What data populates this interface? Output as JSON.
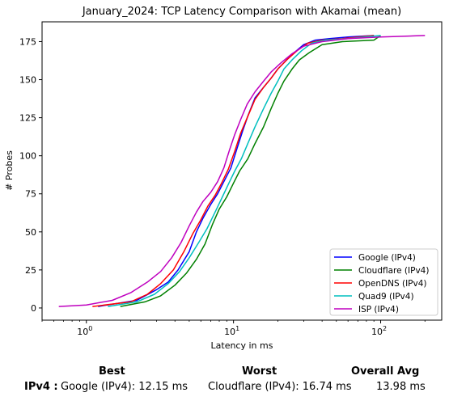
{
  "chart_data": {
    "type": "line",
    "title": "January_2024: TCP Latency Comparison with Akamai (mean)",
    "xlabel": "Latency in ms",
    "ylabel": "# Probes",
    "xscale": "log",
    "xlim": [
      0.5,
      260
    ],
    "ylim": [
      -8,
      188
    ],
    "xticks": [
      1,
      10,
      100
    ],
    "xtick_labels": [
      "10",
      "10",
      "10"
    ],
    "xtick_exponents": [
      "0",
      "1",
      "2"
    ],
    "yticks": [
      0,
      25,
      50,
      75,
      100,
      125,
      150,
      175
    ],
    "yticks_labels": [
      "0",
      "25",
      "50",
      "75",
      "100",
      "125",
      "150",
      "175"
    ],
    "grid": false,
    "legend_position": "bottom-right",
    "series": [
      {
        "name": "Google (IPv4)",
        "color": "#0000ff",
        "x": [
          1.2,
          2.2,
          3.0,
          3.6,
          4.2,
          5.0,
          5.6,
          6.2,
          7.0,
          7.8,
          8.6,
          9.6,
          10.5,
          11.5,
          12.5,
          14.0,
          16.0,
          18.0,
          20.0,
          23.0,
          26.0,
          30.0,
          36.0,
          45.0,
          60.0,
          90.0
        ],
        "y": [
          1,
          5,
          12,
          17,
          25,
          37,
          50,
          59,
          68,
          75,
          83,
          92,
          104,
          116,
          126,
          138,
          145,
          151,
          157,
          163,
          168,
          173,
          176,
          177,
          178,
          179
        ]
      },
      {
        "name": "Cloudflare (IPv4)",
        "color": "#008000",
        "x": [
          1.7,
          2.5,
          3.2,
          4.0,
          4.8,
          5.6,
          6.4,
          7.2,
          8.0,
          9.0,
          10.0,
          11.0,
          12.5,
          14.0,
          16.0,
          18.0,
          20.0,
          22.0,
          25.0,
          28.0,
          33.0,
          40.0,
          55.0,
          90.0,
          100.0
        ],
        "y": [
          1,
          4,
          8,
          15,
          23,
          32,
          42,
          55,
          65,
          73,
          82,
          90,
          98,
          108,
          119,
          131,
          141,
          149,
          157,
          163,
          168,
          173,
          175,
          176,
          179
        ]
      },
      {
        "name": "OpenDNS (IPv4)",
        "color": "#ff0000",
        "x": [
          1.1,
          2.0,
          2.6,
          3.2,
          3.9,
          4.6,
          5.3,
          6.0,
          6.7,
          7.5,
          8.3,
          9.2,
          10.2,
          11.2,
          12.4,
          14.0,
          16.0,
          18.0,
          20.0,
          23.0,
          27.0,
          32.0,
          40.0,
          55.0,
          90.0
        ],
        "y": [
          1,
          4,
          9,
          16,
          25,
          37,
          49,
          58,
          67,
          74,
          82,
          91,
          103,
          115,
          125,
          137,
          145,
          151,
          157,
          163,
          169,
          174,
          176,
          177,
          179
        ]
      },
      {
        "name": "Quad9 (IPv4)",
        "color": "#00bfbf",
        "x": [
          1.4,
          2.2,
          2.9,
          3.6,
          4.3,
          5.0,
          5.8,
          6.6,
          7.5,
          8.4,
          9.3,
          10.2,
          11.3,
          12.5,
          14.0,
          16.0,
          18.0,
          20.0,
          22.0,
          25.0,
          29.0,
          34.0,
          42.0,
          60.0,
          100.0
        ],
        "y": [
          1,
          4,
          9,
          16,
          24,
          33,
          43,
          52,
          63,
          73,
          82,
          90,
          98,
          108,
          119,
          131,
          141,
          149,
          157,
          163,
          169,
          174,
          176,
          177,
          179
        ]
      },
      {
        "name": "ISP (IPv4)",
        "color": "#bf00bf",
        "x": [
          0.65,
          1.0,
          1.5,
          2.0,
          2.6,
          3.2,
          3.8,
          4.4,
          5.0,
          5.6,
          6.2,
          7.0,
          7.8,
          8.6,
          9.4,
          10.2,
          11.2,
          12.4,
          14.0,
          16.0,
          18.0,
          21.0,
          25.0,
          30.0,
          40.0,
          60.0,
          100.0,
          200.0
        ],
        "y": [
          1,
          2,
          5,
          10,
          17,
          24,
          33,
          43,
          54,
          63,
          70,
          76,
          83,
          92,
          104,
          114,
          124,
          134,
          142,
          149,
          155,
          161,
          167,
          172,
          175,
          177,
          178,
          179
        ]
      }
    ]
  },
  "summary": {
    "row_label": "IPv4 :",
    "best_header": "Best",
    "best_value": "Google (IPv4): 12.15 ms",
    "worst_header": "Worst",
    "worst_value": "Cloudflare (IPv4): 16.74 ms",
    "avg_header": "Overall Avg",
    "avg_value": "13.98 ms"
  }
}
